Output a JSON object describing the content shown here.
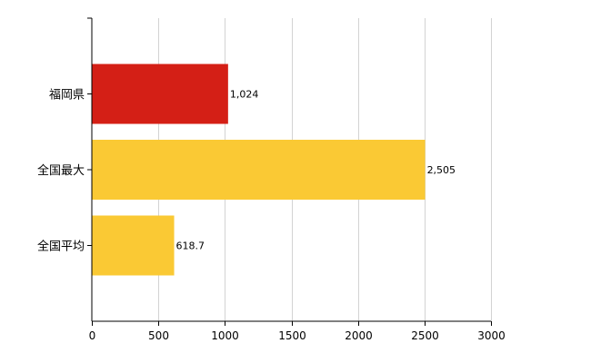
{
  "chart_data": {
    "type": "bar",
    "orientation": "horizontal",
    "title": "",
    "xlabel": "",
    "ylabel": "",
    "categories": [
      "福岡県",
      "全国最大",
      "全国平均"
    ],
    "values": [
      1024,
      2505,
      618.7
    ],
    "value_labels": [
      "1,024",
      "2,505",
      "618.7"
    ],
    "bar_colors": [
      "#d41f16",
      "#fac934",
      "#fac934"
    ],
    "xlim": [
      0,
      3000
    ],
    "xticks": [
      0,
      500,
      1000,
      1500,
      2000,
      2500,
      3000
    ],
    "xtick_labels": [
      "0",
      "500",
      "1000",
      "1500",
      "2000",
      "2500",
      "3000"
    ],
    "grid": "vertical",
    "legend": "none"
  }
}
